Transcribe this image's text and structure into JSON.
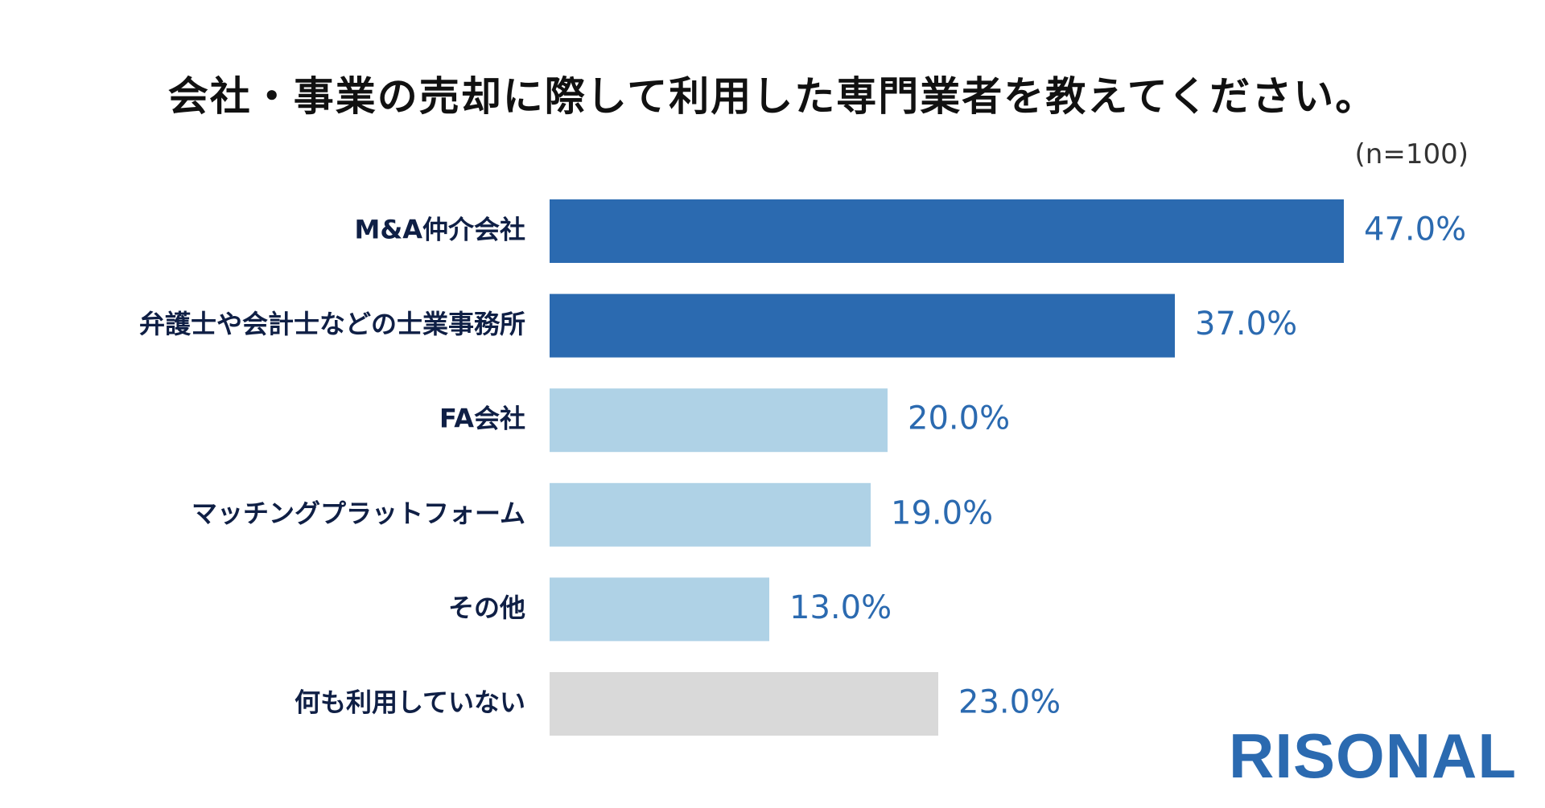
{
  "title": "会社・事業の売却に際して利用した専門業者を教えてください。",
  "sample_size": "(n=100)",
  "logo": "RISONAL",
  "colors": {
    "dark_blue": "#2b6ab0",
    "light_blue": "#afd2e6",
    "gray": "#d9d9d9",
    "value_text": "#2b6ab0",
    "category_text": "#0f1f45"
  },
  "chart_data": {
    "type": "bar",
    "orientation": "horizontal",
    "title": "会社・事業の売却に際して利用した専門業者を教えてください。",
    "categories": [
      "M&A仲介会社",
      "弁護士や会計士などの士業事務所",
      "FA会社",
      "マッチングプラットフォーム",
      "その他",
      "何も利用していない"
    ],
    "values": [
      47.0,
      37.0,
      20.0,
      19.0,
      13.0,
      23.0
    ],
    "value_labels": [
      "47.0%",
      "37.0%",
      "20.0%",
      "19.0%",
      "13.0%",
      "23.0%"
    ],
    "bar_colors": [
      "#2b6ab0",
      "#2b6ab0",
      "#afd2e6",
      "#afd2e6",
      "#afd2e6",
      "#d9d9d9"
    ],
    "xlim": [
      0,
      47
    ],
    "grid": false,
    "legend": "none"
  }
}
